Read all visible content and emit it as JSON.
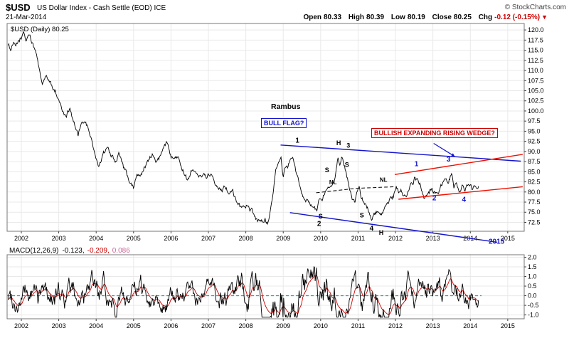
{
  "header": {
    "symbol": "$USD",
    "title": "US Dollar Index - Cash Settle (EOD) ICE",
    "copyright": "© StockCharts.com",
    "date": "21-Mar-2014",
    "quote": {
      "open_label": "Open",
      "open": "80.33",
      "high_label": "High",
      "high": "80.39",
      "low_label": "Low",
      "low": "80.19",
      "close_label": "Close",
      "close": "80.25",
      "chg_label": "Chg",
      "chg": "-0.12 (-0.15%)",
      "chg_direction": "▼"
    }
  },
  "price_panel": {
    "series_label": "$USD (Daily) 80.25",
    "annotations": {
      "rambus": "Rambus",
      "bull_flag": "BULL FLAG?",
      "wedge": "BULLISH EXPANDING RISING WEDGE?"
    }
  },
  "macd_panel": {
    "label": "MACD(12,26,9)",
    "macd_value": "-0.123,",
    "signal_value": "-0.209,",
    "hist_value": "0.086"
  },
  "colors": {
    "blue": "#1414cc",
    "red": "#ee1100",
    "label_red": "#cc0000",
    "signal_red": "#cc0000",
    "hist_pink": "#cc6699",
    "teal": "#009999",
    "grid": "#e9e9e9",
    "border": "#777777"
  },
  "chart_data": [
    {
      "type": "line",
      "title": "$USD (Daily) 80.25",
      "x_axis": {
        "ticks": [
          "2002",
          "2003",
          "2004",
          "2005",
          "2006",
          "2007",
          "2008",
          "2009",
          "2010",
          "2011",
          "2012",
          "2013",
          "2014",
          "2015"
        ],
        "range": [
          2001.62,
          2015.44
        ]
      },
      "y_axis": {
        "ticks": [
          "120.0",
          "117.5",
          "115.0",
          "112.5",
          "110.0",
          "107.5",
          "105.0",
          "102.5",
          "100.0",
          "97.5",
          "95.0",
          "92.5",
          "90.0",
          "87.5",
          "85.0",
          "82.5",
          "80.0",
          "77.5",
          "75.0",
          "72.5"
        ],
        "range": [
          70.3,
          121.6
        ]
      },
      "series": [
        {
          "name": "$USD Close",
          "color": "#000000",
          "keypoints": [
            [
              2001.65,
              116.5
            ],
            [
              2001.72,
              115.2
            ],
            [
              2001.78,
              116.8
            ],
            [
              2001.85,
              115.6
            ],
            [
              2001.92,
              116.9
            ],
            [
              2002.0,
              117.8
            ],
            [
              2002.06,
              119.7
            ],
            [
              2002.12,
              117.6
            ],
            [
              2002.2,
              118.6
            ],
            [
              2002.3,
              116.2
            ],
            [
              2002.4,
              113.5
            ],
            [
              2002.5,
              108.2
            ],
            [
              2002.56,
              106.3
            ],
            [
              2002.65,
              108.0
            ],
            [
              2002.75,
              107.2
            ],
            [
              2002.85,
              105.8
            ],
            [
              2002.95,
              104.2
            ],
            [
              2003.05,
              101.5
            ],
            [
              2003.12,
              99.8
            ],
            [
              2003.2,
              98.6
            ],
            [
              2003.3,
              100.8
            ],
            [
              2003.42,
              96.5
            ],
            [
              2003.52,
              93.4
            ],
            [
              2003.6,
              95.8
            ],
            [
              2003.7,
              97.3
            ],
            [
              2003.8,
              94.8
            ],
            [
              2003.9,
              91.8
            ],
            [
              2004.0,
              87.4
            ],
            [
              2004.08,
              86.3
            ],
            [
              2004.18,
              89.8
            ],
            [
              2004.3,
              90.6
            ],
            [
              2004.4,
              89.6
            ],
            [
              2004.5,
              88.0
            ],
            [
              2004.6,
              89.8
            ],
            [
              2004.7,
              87.6
            ],
            [
              2004.8,
              84.8
            ],
            [
              2004.92,
              81.6
            ],
            [
              2005.0,
              80.9
            ],
            [
              2005.08,
              83.6
            ],
            [
              2005.18,
              84.2
            ],
            [
              2005.3,
              86.6
            ],
            [
              2005.4,
              87.9
            ],
            [
              2005.5,
              89.6
            ],
            [
              2005.6,
              87.4
            ],
            [
              2005.7,
              89.2
            ],
            [
              2005.82,
              91.2
            ],
            [
              2005.9,
              92.4
            ],
            [
              2006.0,
              89.4
            ],
            [
              2006.1,
              90.2
            ],
            [
              2006.2,
              89.9
            ],
            [
              2006.3,
              86.9
            ],
            [
              2006.42,
              84.2
            ],
            [
              2006.52,
              85.6
            ],
            [
              2006.62,
              86.6
            ],
            [
              2006.72,
              85.4
            ],
            [
              2006.85,
              85.2
            ],
            [
              2006.95,
              83.8
            ],
            [
              2007.05,
              84.7
            ],
            [
              2007.15,
              83.4
            ],
            [
              2007.25,
              82.3
            ],
            [
              2007.35,
              81.4
            ],
            [
              2007.45,
              82.4
            ],
            [
              2007.55,
              80.7
            ],
            [
              2007.65,
              80.9
            ],
            [
              2007.75,
              78.3
            ],
            [
              2007.85,
              77.0
            ],
            [
              2007.95,
              76.2
            ],
            [
              2008.05,
              76.9
            ],
            [
              2008.15,
              75.3
            ],
            [
              2008.25,
              72.8
            ],
            [
              2008.32,
              71.4
            ],
            [
              2008.42,
              72.6
            ],
            [
              2008.5,
              72.9
            ],
            [
              2008.57,
              71.9
            ],
            [
              2008.65,
              73.8
            ],
            [
              2008.72,
              77.6
            ],
            [
              2008.8,
              84.8
            ],
            [
              2008.88,
              86.4
            ],
            [
              2008.94,
              88.1
            ],
            [
              2009.0,
              83.6
            ],
            [
              2009.06,
              86.2
            ],
            [
              2009.12,
              85.4
            ],
            [
              2009.2,
              89.1
            ],
            [
              2009.26,
              87.8
            ],
            [
              2009.33,
              85.2
            ],
            [
              2009.42,
              82.4
            ],
            [
              2009.5,
              79.6
            ],
            [
              2009.6,
              78.4
            ],
            [
              2009.7,
              76.9
            ],
            [
              2009.8,
              76.2
            ],
            [
              2009.9,
              75.0
            ],
            [
              2009.96,
              77.6
            ],
            [
              2010.04,
              78.2
            ],
            [
              2010.12,
              80.2
            ],
            [
              2010.2,
              81.4
            ],
            [
              2010.3,
              82.2
            ],
            [
              2010.4,
              84.8
            ],
            [
              2010.46,
              88.4
            ],
            [
              2010.52,
              85.9
            ],
            [
              2010.57,
              88.2
            ],
            [
              2010.65,
              85.3
            ],
            [
              2010.75,
              82.3
            ],
            [
              2010.85,
              78.3
            ],
            [
              2010.92,
              77.0
            ],
            [
              2010.97,
              79.6
            ],
            [
              2011.03,
              81.0
            ],
            [
              2011.08,
              77.8
            ],
            [
              2011.15,
              77.4
            ],
            [
              2011.23,
              75.9
            ],
            [
              2011.32,
              74.3
            ],
            [
              2011.38,
              73.2
            ],
            [
              2011.45,
              74.6
            ],
            [
              2011.52,
              75.1
            ],
            [
              2011.6,
              73.6
            ],
            [
              2011.7,
              74.6
            ],
            [
              2011.8,
              76.6
            ],
            [
              2011.87,
              78.1
            ],
            [
              2011.95,
              78.4
            ],
            [
              2012.02,
              81.2
            ],
            [
              2012.08,
              79.4
            ],
            [
              2012.15,
              80.1
            ],
            [
              2012.22,
              78.7
            ],
            [
              2012.32,
              79.6
            ],
            [
              2012.42,
              81.6
            ],
            [
              2012.52,
              83.6
            ],
            [
              2012.6,
              82.7
            ],
            [
              2012.7,
              81.0
            ],
            [
              2012.76,
              79.4
            ],
            [
              2012.84,
              79.9
            ],
            [
              2012.92,
              80.4
            ],
            [
              2013.0,
              79.7
            ],
            [
              2013.06,
              79.2
            ],
            [
              2013.14,
              80.4
            ],
            [
              2013.22,
              81.6
            ],
            [
              2013.32,
              82.9
            ],
            [
              2013.42,
              82.8
            ],
            [
              2013.5,
              84.6
            ],
            [
              2013.56,
              81.4
            ],
            [
              2013.64,
              82.2
            ],
            [
              2013.72,
              80.4
            ],
            [
              2013.78,
              81.2
            ],
            [
              2013.85,
              79.6
            ],
            [
              2013.92,
              80.3
            ],
            [
              2014.0,
              81.1
            ],
            [
              2014.06,
              80.1
            ],
            [
              2014.12,
              80.7
            ],
            [
              2014.17,
              79.8
            ],
            [
              2014.22,
              80.3
            ]
          ]
        }
      ],
      "trendlines": [
        {
          "name": "bull-flag-upper",
          "color": "#1414cc",
          "width": 1.4,
          "points": [
            [
              2008.93,
              91.6
            ],
            [
              2015.35,
              87.6
            ]
          ]
        },
        {
          "name": "bull-flag-lower",
          "color": "#1414cc",
          "width": 1.4,
          "points": [
            [
              2009.18,
              74.9
            ],
            [
              2014.72,
              67.6
            ]
          ]
        },
        {
          "name": "wedge-upper",
          "color": "#ee1100",
          "width": 1.4,
          "points": [
            [
              2011.98,
              84.3
            ],
            [
              2015.4,
              89.3
            ]
          ]
        },
        {
          "name": "wedge-lower",
          "color": "#ee1100",
          "width": 1.4,
          "points": [
            [
              2012.08,
              78.2
            ],
            [
              2015.4,
              81.3
            ]
          ]
        },
        {
          "name": "neckline",
          "color": "#000000",
          "width": 1,
          "dash": true,
          "points": [
            [
              2009.88,
              79.8
            ],
            [
              2010.95,
              80.9
            ],
            [
              2012.0,
              81.3
            ]
          ]
        }
      ],
      "point_labels": [
        {
          "text": "1",
          "x": 2009.38,
          "y": 92.2,
          "color": "#000000",
          "size": 10
        },
        {
          "text": "H",
          "x": 2010.48,
          "y": 91.6,
          "color": "#000000",
          "size": 9
        },
        {
          "text": "3",
          "x": 2010.74,
          "y": 90.9,
          "color": "#000000",
          "size": 9
        },
        {
          "text": "S",
          "x": 2010.17,
          "y": 84.9,
          "color": "#000000",
          "size": 9
        },
        {
          "text": "S",
          "x": 2010.7,
          "y": 86.2,
          "color": "#000000",
          "size": 9
        },
        {
          "text": "NL",
          "x": 2010.33,
          "y": 81.9,
          "color": "#000000",
          "size": 8
        },
        {
          "text": "NL",
          "x": 2011.68,
          "y": 82.5,
          "color": "#000000",
          "size": 8
        },
        {
          "text": "S",
          "x": 2010.0,
          "y": 73.5,
          "color": "#000000",
          "size": 9
        },
        {
          "text": "2",
          "x": 2009.96,
          "y": 71.6,
          "color": "#000000",
          "size": 10
        },
        {
          "text": "S",
          "x": 2011.1,
          "y": 73.7,
          "color": "#000000",
          "size": 9
        },
        {
          "text": "4",
          "x": 2011.36,
          "y": 70.5,
          "color": "#000000",
          "size": 10
        },
        {
          "text": "H",
          "x": 2011.62,
          "y": 69.4,
          "color": "#000000",
          "size": 9
        },
        {
          "text": "1",
          "x": 2012.56,
          "y": 86.4,
          "color": "#1414cc",
          "size": 10
        },
        {
          "text": "2",
          "x": 2013.04,
          "y": 77.9,
          "color": "#1414cc",
          "size": 10
        },
        {
          "text": "3",
          "x": 2013.42,
          "y": 87.5,
          "color": "#1414cc",
          "size": 10
        },
        {
          "text": "4",
          "x": 2013.83,
          "y": 77.6,
          "color": "#1414cc",
          "size": 10
        },
        {
          "text": "2015",
          "x": 2014.7,
          "y": 67.2,
          "color": "#1414cc",
          "size": 10
        }
      ],
      "arrow": {
        "from": [
          2013.02,
          92.0
        ],
        "to": [
          2013.58,
          88.8
        ],
        "color": "#1414cc"
      }
    },
    {
      "type": "line",
      "title": "MACD(12,26,9)",
      "x_axis": {
        "ticks": [
          "2002",
          "2003",
          "2004",
          "2005",
          "2006",
          "2007",
          "2008",
          "2009",
          "2010",
          "2011",
          "2012",
          "2013",
          "2014",
          "2015"
        ],
        "range": [
          2001.62,
          2015.44
        ]
      },
      "y_axis": {
        "ticks": [
          "2.0",
          "1.5",
          "1.0",
          "0.5",
          "0.0",
          "-0.5",
          "-1.0"
        ],
        "range": [
          -1.2,
          2.13
        ]
      },
      "series": [
        {
          "name": "MACD",
          "color": "#000000",
          "last_value": -0.123
        },
        {
          "name": "Signal",
          "color": "#cc0000",
          "last_value": -0.209
        },
        {
          "name": "Histogram",
          "color": "#cc6699",
          "last_value": 0.086
        }
      ],
      "zero_line": {
        "value": 0.0,
        "color": "#009999",
        "dash": true
      },
      "envelope": [
        [
          2001.65,
          0.42
        ],
        [
          2002.6,
          0.46
        ],
        [
          2003.5,
          0.42
        ],
        [
          2004.5,
          0.46
        ],
        [
          2005.5,
          0.38
        ],
        [
          2006.5,
          0.33
        ],
        [
          2007.5,
          0.42
        ],
        [
          2008.3,
          0.55
        ],
        [
          2008.85,
          1.05
        ],
        [
          2009.3,
          0.8
        ],
        [
          2009.9,
          0.55
        ],
        [
          2010.45,
          0.68
        ],
        [
          2011.1,
          0.52
        ],
        [
          2011.8,
          0.56
        ],
        [
          2012.5,
          0.42
        ],
        [
          2013.3,
          0.44
        ],
        [
          2014.22,
          0.32
        ]
      ]
    }
  ]
}
